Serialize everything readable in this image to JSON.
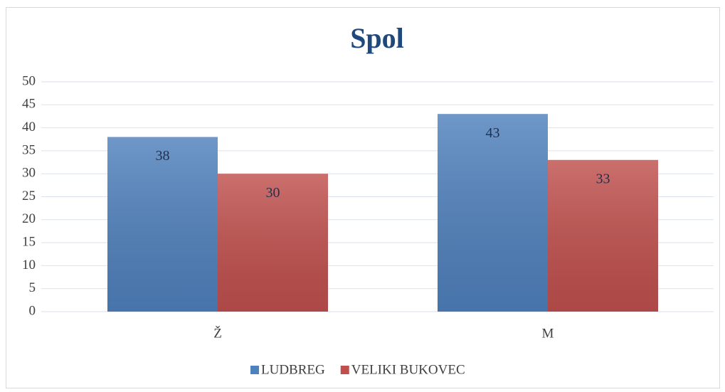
{
  "chart_data": {
    "type": "bar",
    "title": "Spol",
    "categories": [
      "Ž",
      "M"
    ],
    "series": [
      {
        "name": "LUDBREG",
        "color": "#4f81bd",
        "values": [
          38,
          43
        ]
      },
      {
        "name": "VELIKI BUKOVEC",
        "color": "#c0504d",
        "values": [
          30,
          33
        ]
      }
    ],
    "ylim": [
      0,
      50
    ],
    "yticks": [
      0,
      5,
      10,
      15,
      20,
      25,
      30,
      35,
      40,
      45,
      50
    ],
    "grid": true,
    "legend": "bottom",
    "data_labels": true
  }
}
